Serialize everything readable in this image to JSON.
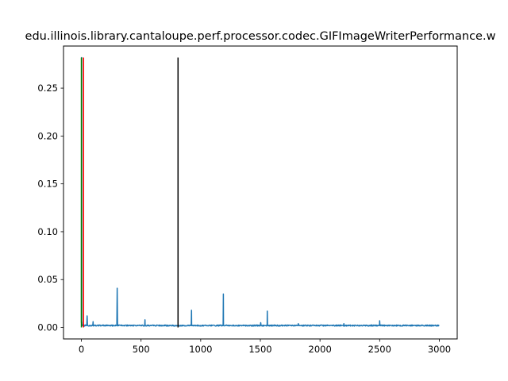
{
  "chart_data": {
    "type": "line",
    "title": "edu.illinois.library.cantaloupe.perf.processor.codec.GIFImageWriterPerformance.w",
    "xlabel": "",
    "ylabel": "",
    "xlim": [
      -150,
      3150
    ],
    "ylim": [
      -0.012,
      0.294
    ],
    "x_ticks": [
      0,
      500,
      1000,
      1500,
      2000,
      2500,
      3000
    ],
    "x_tick_labels": [
      "0",
      "500",
      "1000",
      "1500",
      "2000",
      "2500",
      "3000"
    ],
    "y_ticks": [
      0.0,
      0.05,
      0.1,
      0.15,
      0.2,
      0.25
    ],
    "y_tick_labels": [
      "0.00",
      "0.05",
      "0.10",
      "0.15",
      "0.20",
      "0.25"
    ],
    "grid": false,
    "series": [
      {
        "name": "timing",
        "color": "#1f77b4",
        "baseline": 0.002,
        "x_start": 0,
        "x_end": 3000,
        "points": [
          [
            0,
            0.005
          ],
          [
            2,
            0.282
          ],
          [
            4,
            0.006
          ],
          [
            8,
            0.003
          ],
          [
            15,
            0.002
          ],
          [
            45,
            0.002
          ],
          [
            48,
            0.012
          ],
          [
            51,
            0.002
          ],
          [
            95,
            0.002
          ],
          [
            98,
            0.006
          ],
          [
            101,
            0.002
          ],
          [
            297,
            0.002
          ],
          [
            300,
            0.041
          ],
          [
            303,
            0.002
          ],
          [
            530,
            0.002
          ],
          [
            533,
            0.008
          ],
          [
            536,
            0.002
          ],
          [
            920,
            0.002
          ],
          [
            923,
            0.018
          ],
          [
            926,
            0.002
          ],
          [
            1187,
            0.002
          ],
          [
            1190,
            0.035
          ],
          [
            1193,
            0.002
          ],
          [
            1500,
            0.002
          ],
          [
            1503,
            0.005
          ],
          [
            1506,
            0.002
          ],
          [
            1555,
            0.002
          ],
          [
            1558,
            0.017
          ],
          [
            1561,
            0.002
          ],
          [
            1815,
            0.002
          ],
          [
            1818,
            0.004
          ],
          [
            1821,
            0.002
          ],
          [
            2197,
            0.002
          ],
          [
            2200,
            0.004
          ],
          [
            2203,
            0.002
          ],
          [
            2497,
            0.002
          ],
          [
            2500,
            0.007
          ],
          [
            2503,
            0.002
          ],
          [
            3000,
            0.002
          ]
        ]
      }
    ],
    "vertical_lines": [
      {
        "name": "green-marker",
        "x": 0,
        "y_min": 0.0,
        "y_max": 0.282,
        "color": "#008000"
      },
      {
        "name": "red-marker",
        "x": 18,
        "y_min": 0.0,
        "y_max": 0.282,
        "color": "#ff0000"
      },
      {
        "name": "black-marker",
        "x": 810,
        "y_min": 0.0,
        "y_max": 0.282,
        "color": "#000000"
      }
    ]
  }
}
